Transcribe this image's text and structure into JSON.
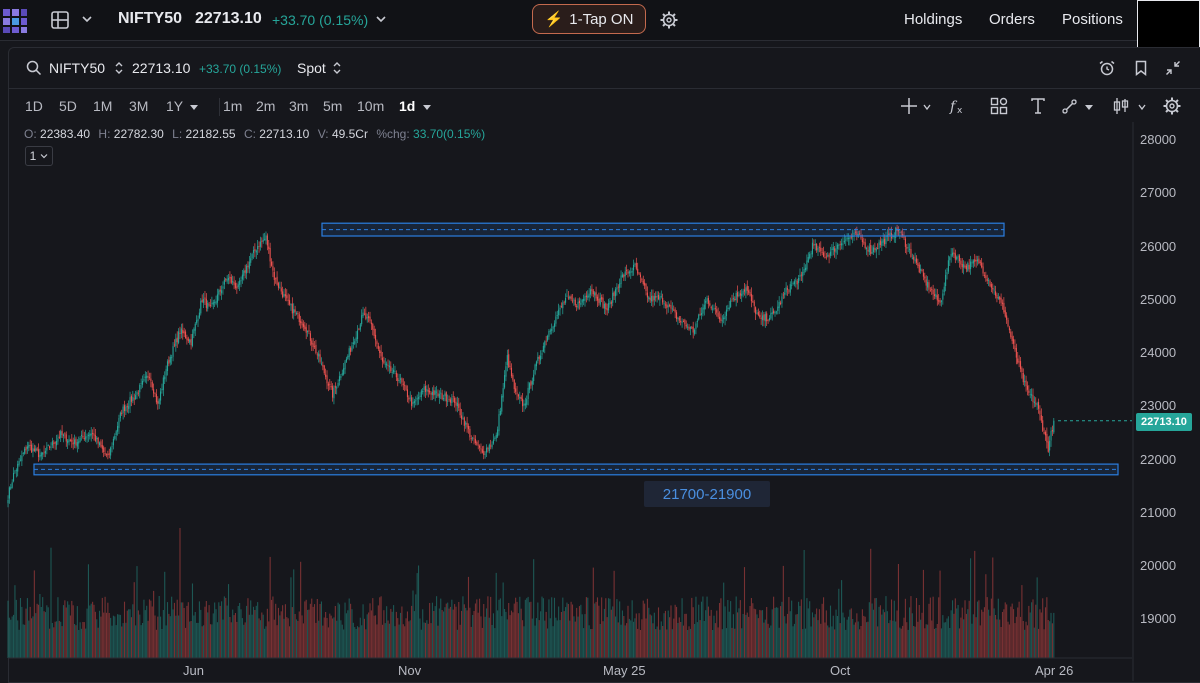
{
  "topbar": {
    "symbol": "NIFTY50",
    "price": "22713.10",
    "change": "+33.70 (0.15%)",
    "one_tap": "1-Tap ON",
    "nav": [
      "Holdings",
      "Orders",
      "Positions"
    ]
  },
  "symbol_row": {
    "symbol": "NIFTY50",
    "price": "22713.10",
    "change": "+33.70 (0.15%)",
    "type": "Spot"
  },
  "timeframes": {
    "ranges": [
      "1D",
      "5D",
      "1M",
      "3M",
      "1Y"
    ],
    "intervals": [
      "1m",
      "2m",
      "3m",
      "5m",
      "10m",
      "1d"
    ],
    "active_interval": "1d"
  },
  "ohlc": {
    "o_label": "O:",
    "o": "22383.40",
    "h_label": "H:",
    "h": "22782.30",
    "l_label": "L:",
    "l": "22182.55",
    "c_label": "C:",
    "c": "22713.10",
    "v_label": "V:",
    "v": "49.5Cr",
    "chg_label": "%chg:",
    "chg": "33.70(0.15%)"
  },
  "indicator_count": "1",
  "colors": {
    "up": "#26a69a",
    "down": "#ef5350",
    "zone": "#2b7ee0",
    "background": "#16171c",
    "one_tap_border": "#c46a4e"
  },
  "chart_data": {
    "type": "candlestick",
    "symbol": "NIFTY50",
    "interval": "1d",
    "y_axis": {
      "ticks": [
        28000,
        27000,
        26000,
        25000,
        24000,
        23000,
        22000,
        21000,
        20000,
        19000
      ],
      "ylim": [
        18200,
        28200
      ]
    },
    "x_axis": {
      "ticks": [
        "Jun",
        "Nov",
        "May 25",
        "Oct",
        "Apr 26"
      ]
    },
    "last_price": "22713.10",
    "last_price_value": 22713.1,
    "support_zone": {
      "low": 21700,
      "high": 21900,
      "label": "21700-21900"
    },
    "resistance_zone": {
      "low": 26180,
      "high": 26420
    },
    "price_path_anchors": [
      [
        0,
        21300
      ],
      [
        4,
        21700
      ],
      [
        14,
        22250
      ],
      [
        24,
        22050
      ],
      [
        38,
        22450
      ],
      [
        48,
        22300
      ],
      [
        60,
        22500
      ],
      [
        72,
        22000
      ],
      [
        82,
        22900
      ],
      [
        92,
        23200
      ],
      [
        102,
        23600
      ],
      [
        108,
        23000
      ],
      [
        114,
        23700
      ],
      [
        124,
        24400
      ],
      [
        132,
        24200
      ],
      [
        140,
        25000
      ],
      [
        146,
        24800
      ],
      [
        158,
        25400
      ],
      [
        166,
        25200
      ],
      [
        172,
        25600
      ],
      [
        180,
        26000
      ],
      [
        186,
        26150
      ],
      [
        192,
        25400
      ],
      [
        202,
        24900
      ],
      [
        214,
        24500
      ],
      [
        224,
        23900
      ],
      [
        234,
        23200
      ],
      [
        246,
        24000
      ],
      [
        256,
        24700
      ],
      [
        262,
        24500
      ],
      [
        270,
        23800
      ],
      [
        282,
        23500
      ],
      [
        292,
        23000
      ],
      [
        300,
        23300
      ],
      [
        310,
        23200
      ],
      [
        322,
        23100
      ],
      [
        334,
        22400
      ],
      [
        342,
        22100
      ],
      [
        352,
        22400
      ],
      [
        360,
        23900
      ],
      [
        366,
        23200
      ],
      [
        372,
        23000
      ],
      [
        380,
        23700
      ],
      [
        390,
        24400
      ],
      [
        402,
        25000
      ],
      [
        412,
        24900
      ],
      [
        420,
        25200
      ],
      [
        432,
        24800
      ],
      [
        442,
        25400
      ],
      [
        452,
        25600
      ],
      [
        462,
        25000
      ],
      [
        472,
        25000
      ],
      [
        484,
        24600
      ],
      [
        494,
        24400
      ],
      [
        504,
        25000
      ],
      [
        514,
        24600
      ],
      [
        522,
        25000
      ],
      [
        532,
        25200
      ],
      [
        542,
        24600
      ],
      [
        552,
        24700
      ],
      [
        562,
        25200
      ],
      [
        572,
        25400
      ],
      [
        580,
        26000
      ],
      [
        590,
        25800
      ],
      [
        602,
        26100
      ],
      [
        612,
        26200
      ],
      [
        622,
        25900
      ],
      [
        632,
        26100
      ],
      [
        642,
        26300
      ],
      [
        652,
        25800
      ],
      [
        662,
        25300
      ],
      [
        672,
        24900
      ],
      [
        680,
        25900
      ],
      [
        690,
        25600
      ],
      [
        700,
        25700
      ],
      [
        710,
        25200
      ],
      [
        718,
        24800
      ],
      [
        726,
        24000
      ],
      [
        734,
        23300
      ],
      [
        742,
        23000
      ],
      [
        750,
        22200
      ],
      [
        754,
        22713
      ]
    ]
  }
}
